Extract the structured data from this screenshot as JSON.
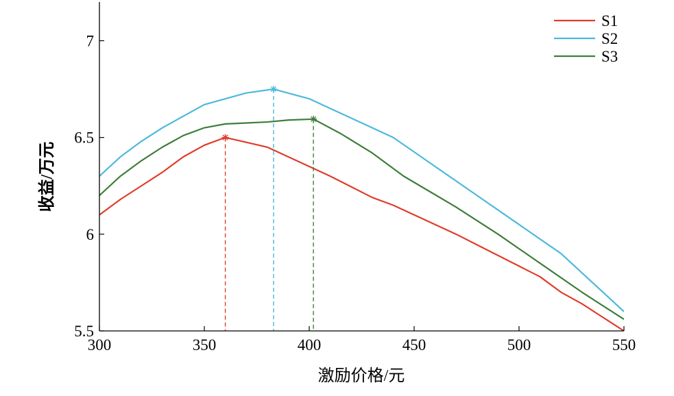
{
  "chart_data": {
    "type": "line",
    "xlabel": "激励价格/元",
    "ylabel": "收益/万元",
    "xlim": [
      300,
      550
    ],
    "ylim": [
      5.5,
      7.2
    ],
    "xticks": [
      300,
      350,
      400,
      450,
      500,
      550
    ],
    "yticks": [
      5.5,
      6,
      6.5,
      7
    ],
    "xtick_labels": [
      "300",
      "350",
      "400",
      "450",
      "500",
      "550"
    ],
    "ytick_labels": [
      "5.5",
      "6",
      "6.5",
      "7"
    ],
    "grid": false,
    "legend_position": "top-right",
    "series": [
      {
        "name": "S1",
        "color": "#e03c2a",
        "x": [
          300,
          310,
          320,
          330,
          340,
          350,
          360,
          370,
          380,
          390,
          400,
          410,
          420,
          430,
          440,
          450,
          460,
          470,
          480,
          490,
          500,
          510,
          520,
          530,
          540,
          550
        ],
        "y": [
          6.1,
          6.18,
          6.25,
          6.32,
          6.4,
          6.46,
          6.5,
          6.475,
          6.45,
          6.4,
          6.35,
          6.3,
          6.245,
          6.19,
          6.15,
          6.1,
          6.05,
          6.0,
          5.945,
          5.89,
          5.835,
          5.78,
          5.7,
          5.64,
          5.57,
          5.5
        ],
        "peak": {
          "x": 360,
          "y": 6.5
        }
      },
      {
        "name": "S2",
        "color": "#4db8dc",
        "x": [
          300,
          310,
          320,
          330,
          340,
          350,
          360,
          370,
          383,
          400,
          420,
          440,
          460,
          480,
          500,
          520,
          535,
          550
        ],
        "y": [
          6.3,
          6.4,
          6.48,
          6.55,
          6.61,
          6.67,
          6.7,
          6.73,
          6.75,
          6.7,
          6.6,
          6.5,
          6.35,
          6.2,
          6.05,
          5.9,
          5.75,
          5.6
        ],
        "peak": {
          "x": 383,
          "y": 6.75
        }
      },
      {
        "name": "S3",
        "color": "#3f7d3a",
        "x": [
          300,
          310,
          320,
          330,
          340,
          350,
          360,
          370,
          380,
          390,
          402,
          415,
          430,
          445,
          470,
          490,
          510,
          530,
          550
        ],
        "y": [
          6.2,
          6.3,
          6.38,
          6.45,
          6.51,
          6.55,
          6.57,
          6.575,
          6.58,
          6.59,
          6.595,
          6.52,
          6.42,
          6.3,
          6.14,
          6.0,
          5.85,
          5.7,
          5.56
        ],
        "peak": {
          "x": 402,
          "y": 6.595
        }
      }
    ]
  }
}
